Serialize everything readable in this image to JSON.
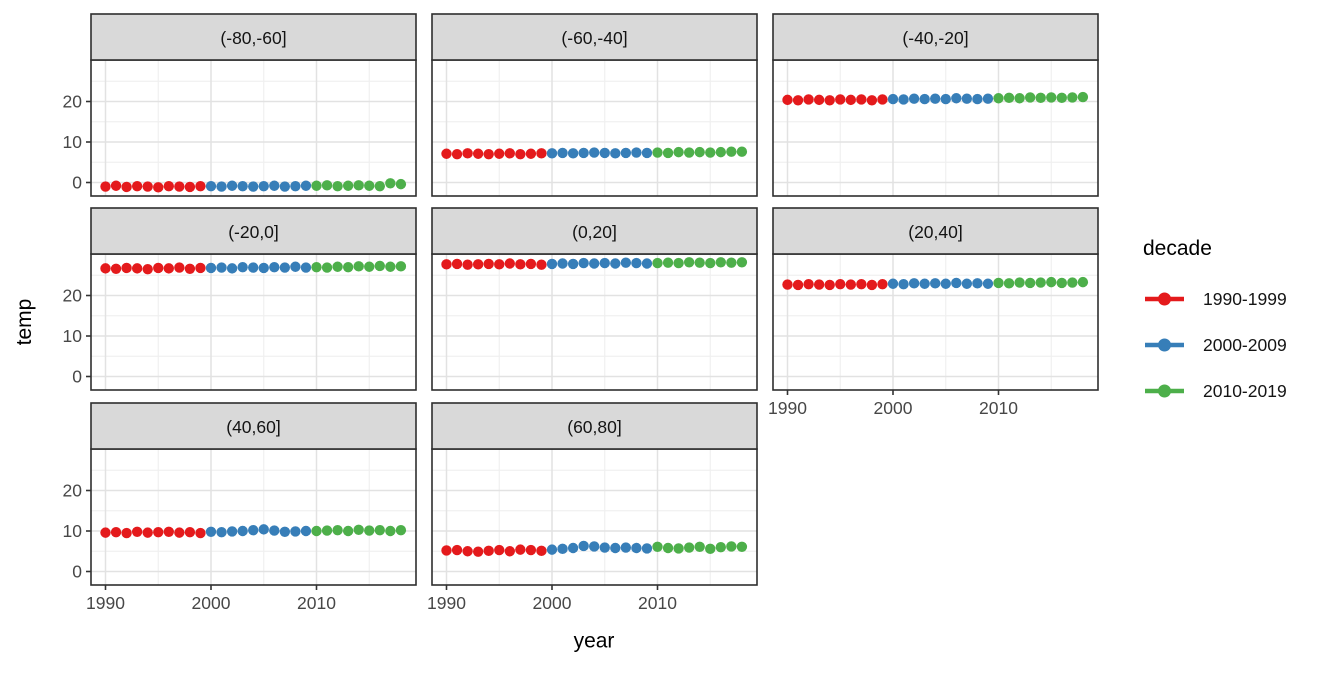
{
  "legend": {
    "title": "decade",
    "position": "right",
    "entries": [
      {
        "label": "1990-1999",
        "color": "#E41A1C"
      },
      {
        "label": "2000-2009",
        "color": "#377EB8"
      },
      {
        "label": "2010-2019",
        "color": "#4DAF4A"
      }
    ]
  },
  "theme": {
    "strip_fill": "#D9D9D9",
    "border": "#2E2E2E",
    "grid_major": "#E2E2E2",
    "grid_minor": "#F0F0F0",
    "tick": "#333333",
    "background": "#FFFFFF"
  },
  "chart_data": {
    "type": "scatter",
    "title": "",
    "xlabel": "year",
    "ylabel": "temp",
    "grid": "on",
    "legend_position": "right",
    "x_ticks": [
      1990,
      2000,
      2010
    ],
    "y_ticks": [
      0,
      10,
      20
    ],
    "x_minor_gridlines": [
      1995,
      2005,
      2015
    ],
    "y_minor_gridlines": [
      5,
      15,
      25
    ],
    "xlim": [
      1988.6,
      2019.4
    ],
    "ylim": [
      -3.1,
      30.5
    ],
    "years_range": [
      1990,
      2018
    ],
    "facets": [
      {
        "label": "(-80,-60]",
        "values": {
          "1990-1999": [
            -1.0,
            -0.8,
            -1.1,
            -0.9,
            -1.0,
            -1.2,
            -0.9,
            -1.0,
            -1.1,
            -0.9
          ],
          "2000-2009": [
            -0.9,
            -1.0,
            -0.8,
            -0.9,
            -1.0,
            -0.9,
            -0.8,
            -1.0,
            -0.9,
            -0.8
          ],
          "2010-2019": [
            -0.8,
            -0.7,
            -0.9,
            -0.8,
            -0.7,
            -0.8,
            -0.9,
            -0.2,
            -0.4
          ]
        }
      },
      {
        "label": "(-60,-40]",
        "values": {
          "1990-1999": [
            7.1,
            7.0,
            7.2,
            7.1,
            7.0,
            7.1,
            7.2,
            7.0,
            7.1,
            7.2
          ],
          "2000-2009": [
            7.2,
            7.3,
            7.2,
            7.3,
            7.4,
            7.3,
            7.2,
            7.3,
            7.4,
            7.3
          ],
          "2010-2019": [
            7.4,
            7.3,
            7.5,
            7.4,
            7.5,
            7.4,
            7.5,
            7.6,
            7.6
          ]
        }
      },
      {
        "label": "(-40,-20]",
        "values": {
          "1990-1999": [
            20.4,
            20.3,
            20.5,
            20.4,
            20.3,
            20.5,
            20.4,
            20.5,
            20.3,
            20.5
          ],
          "2000-2009": [
            20.6,
            20.5,
            20.7,
            20.6,
            20.7,
            20.6,
            20.8,
            20.7,
            20.6,
            20.7
          ],
          "2010-2019": [
            20.8,
            20.9,
            20.8,
            21.0,
            20.9,
            21.0,
            20.9,
            21.0,
            21.1
          ]
        }
      },
      {
        "label": "(-20,0]",
        "values": {
          "1990-1999": [
            26.7,
            26.6,
            26.8,
            26.7,
            26.5,
            26.8,
            26.7,
            26.9,
            26.6,
            26.8
          ],
          "2000-2009": [
            26.8,
            26.9,
            26.7,
            27.0,
            26.9,
            26.8,
            27.0,
            26.9,
            27.1,
            26.9
          ],
          "2010-2019": [
            27.0,
            26.9,
            27.1,
            27.0,
            27.2,
            27.1,
            27.3,
            27.1,
            27.2
          ]
        }
      },
      {
        "label": "(0,20]",
        "values": {
          "1990-1999": [
            27.7,
            27.8,
            27.6,
            27.7,
            27.8,
            27.7,
            27.9,
            27.7,
            27.8,
            27.6
          ],
          "2000-2009": [
            27.8,
            27.9,
            27.8,
            28.0,
            27.9,
            28.0,
            27.9,
            28.1,
            28.0,
            27.9
          ],
          "2010-2019": [
            28.0,
            28.1,
            28.0,
            28.2,
            28.1,
            28.0,
            28.2,
            28.1,
            28.2
          ]
        }
      },
      {
        "label": "(20,40]",
        "values": {
          "1990-1999": [
            22.7,
            22.6,
            22.8,
            22.7,
            22.6,
            22.8,
            22.7,
            22.8,
            22.6,
            22.8
          ],
          "2000-2009": [
            22.9,
            22.8,
            23.0,
            22.9,
            23.0,
            22.9,
            23.1,
            22.9,
            23.0,
            22.9
          ],
          "2010-2019": [
            23.1,
            23.0,
            23.2,
            23.1,
            23.2,
            23.3,
            23.1,
            23.2,
            23.3
          ]
        }
      },
      {
        "label": "(40,60]",
        "values": {
          "1990-1999": [
            9.6,
            9.7,
            9.5,
            9.8,
            9.6,
            9.7,
            9.8,
            9.6,
            9.7,
            9.5
          ],
          "2000-2009": [
            9.8,
            9.7,
            9.9,
            10.0,
            10.2,
            10.4,
            10.1,
            9.8,
            9.9,
            10.0
          ],
          "2010-2019": [
            10.0,
            10.1,
            10.2,
            10.0,
            10.3,
            10.1,
            10.2,
            10.0,
            10.2
          ]
        }
      },
      {
        "label": "(60,80]",
        "values": {
          "1990-1999": [
            5.2,
            5.3,
            5.0,
            4.9,
            5.1,
            5.3,
            5.0,
            5.4,
            5.3,
            5.1
          ],
          "2000-2009": [
            5.4,
            5.6,
            5.8,
            6.3,
            6.2,
            5.9,
            5.8,
            5.9,
            5.8,
            5.7
          ],
          "2010-2019": [
            6.1,
            5.8,
            5.7,
            5.9,
            6.1,
            5.6,
            6.0,
            6.2,
            6.1
          ]
        }
      }
    ]
  }
}
